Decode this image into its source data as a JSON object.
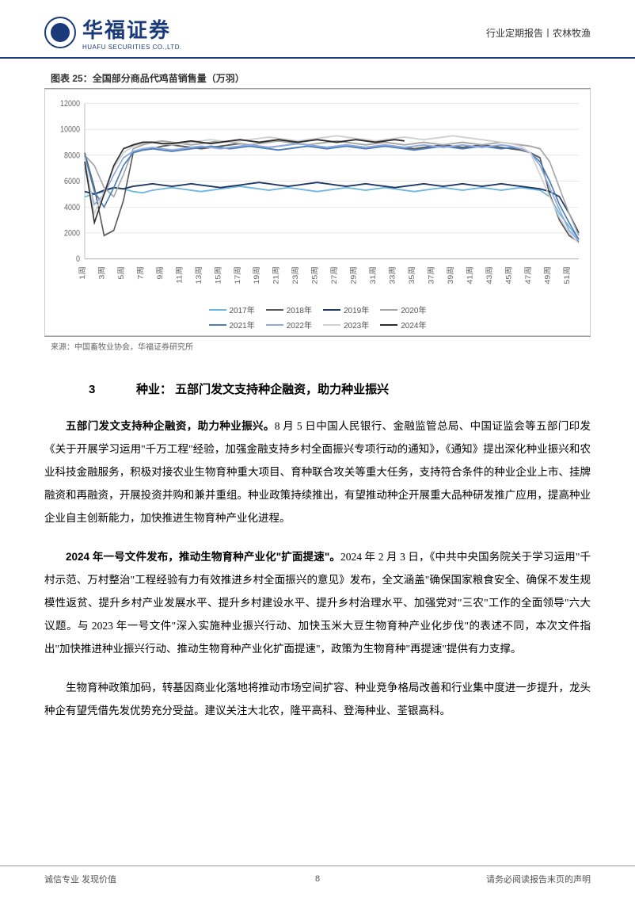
{
  "header": {
    "logo_title": "华福证券",
    "logo_sub": "HUAFU SECURITIES CO.,LTD.",
    "right_text": "行业定期报告丨农林牧渔"
  },
  "chart": {
    "title_prefix": "图表 25：",
    "title": "全国部分商品代鸡苗销售量（万羽）",
    "source": "来源：中国畜牧业协会，华福证券研究所",
    "type": "line",
    "ylim": [
      0,
      12000
    ],
    "ytick_step": 2000,
    "yticks": [
      "0",
      "2000",
      "4000",
      "6000",
      "8000",
      "10000",
      "12000"
    ],
    "xticks": [
      "1周",
      "3周",
      "5周",
      "7周",
      "9周",
      "11周",
      "13周",
      "15周",
      "17周",
      "19周",
      "21周",
      "23周",
      "25周",
      "27周",
      "29周",
      "31周",
      "33周",
      "35周",
      "37周",
      "39周",
      "41周",
      "43周",
      "45周",
      "47周",
      "49周",
      "51周"
    ],
    "background_color": "#ffffff",
    "grid_color": "#d9d9d9",
    "axis_color": "#bfbfbf",
    "tick_font_size": 9,
    "legend": [
      {
        "label": "2017年",
        "color": "#6fb7e0"
      },
      {
        "label": "2018年",
        "color": "#595959"
      },
      {
        "label": "2019年",
        "color": "#1f3864"
      },
      {
        "label": "2020年",
        "color": "#a6a6a6"
      },
      {
        "label": "2021年",
        "color": "#4a7ebb"
      },
      {
        "label": "2022年",
        "color": "#8faadc"
      },
      {
        "label": "2023年",
        "color": "#d0d0d0"
      },
      {
        "label": "2024年",
        "color": "#2d2d2d"
      }
    ],
    "series": {
      "2017": [
        4800,
        5000,
        5200,
        5500,
        5400,
        5200,
        5100,
        5300,
        5400,
        5500,
        5400,
        5300,
        5200,
        5300,
        5400,
        5500,
        5600,
        5500,
        5400,
        5300,
        5400,
        5500,
        5400,
        5300,
        5200,
        5300,
        5400,
        5500,
        5400,
        5300,
        5400,
        5500,
        5400,
        5300,
        5200,
        5300,
        5400,
        5500,
        5400,
        5300,
        5400,
        5500,
        5400,
        5300,
        5400,
        5500,
        5400,
        5300,
        4800,
        3500,
        2500,
        1500
      ],
      "2018": [
        8200,
        5500,
        1800,
        2200,
        4500,
        8200,
        8400,
        8500,
        8700,
        8800,
        8700,
        8600,
        8500,
        8600,
        8700,
        8800,
        8900,
        8800,
        8700,
        8600,
        8700,
        8800,
        8900,
        8800,
        8700,
        8600,
        8700,
        8800,
        8700,
        8600,
        8700,
        8800,
        8700,
        8600,
        8500,
        8600,
        8700,
        8800,
        8700,
        8600,
        8700,
        8800,
        8700,
        8600,
        8500,
        8400,
        8200,
        7800,
        5000,
        3000,
        1800,
        1300
      ],
      "2019": [
        5200,
        5000,
        5300,
        5500,
        5400,
        5600,
        5700,
        5800,
        5700,
        5600,
        5700,
        5800,
        5700,
        5600,
        5500,
        5600,
        5700,
        5800,
        5900,
        5800,
        5700,
        5600,
        5700,
        5800,
        5900,
        5800,
        5700,
        5600,
        5700,
        5800,
        5700,
        5600,
        5500,
        5600,
        5700,
        5800,
        5700,
        5600,
        5700,
        5800,
        5700,
        5600,
        5700,
        5800,
        5700,
        5600,
        5500,
        5400,
        5200,
        4800,
        3500,
        2000
      ],
      "2020": [
        8000,
        7200,
        5500,
        4800,
        6500,
        8500,
        8800,
        9000,
        9100,
        9000,
        8900,
        8800,
        8900,
        9000,
        9100,
        9000,
        8900,
        8800,
        8900,
        9000,
        9100,
        9000,
        8900,
        8800,
        8900,
        9000,
        9100,
        9000,
        8900,
        8800,
        8900,
        9000,
        8900,
        8800,
        8900,
        9000,
        8900,
        8800,
        8900,
        9000,
        8900,
        8800,
        8900,
        9000,
        8900,
        8800,
        8700,
        8500,
        7500,
        5500,
        3500,
        1800
      ],
      "2021": [
        8000,
        5200,
        4000,
        5500,
        7200,
        8200,
        8400,
        8500,
        8400,
        8300,
        8400,
        8500,
        8600,
        8700,
        8600,
        8500,
        8600,
        8700,
        8600,
        8500,
        8400,
        8500,
        8600,
        8700,
        8600,
        8500,
        8600,
        8700,
        8600,
        8500,
        8600,
        8700,
        8600,
        8500,
        8400,
        8500,
        8600,
        8700,
        8600,
        8500,
        8600,
        8700,
        8600,
        8500,
        8600,
        8500,
        8200,
        7500,
        6000,
        4200,
        2800,
        1500
      ],
      "2022": [
        7000,
        4200,
        5000,
        6500,
        7800,
        8300,
        8500,
        8600,
        8500,
        8400,
        8500,
        8600,
        8700,
        8600,
        8500,
        8600,
        8700,
        8800,
        8700,
        8600,
        8700,
        8800,
        8900,
        8800,
        8700,
        8600,
        8700,
        8800,
        8700,
        8600,
        8700,
        8800,
        8700,
        8600,
        8700,
        8800,
        8700,
        8600,
        8700,
        8800,
        8700,
        8600,
        8700,
        8800,
        8700,
        8500,
        8200,
        7200,
        5500,
        3800,
        2200,
        1400
      ],
      "2023": [
        7800,
        3500,
        5200,
        7000,
        8200,
        8700,
        8900,
        9000,
        8900,
        8800,
        8900,
        9000,
        9100,
        9200,
        9100,
        9000,
        9100,
        9200,
        9300,
        9400,
        9300,
        9200,
        9100,
        9200,
        9300,
        9400,
        9500,
        9400,
        9300,
        9200,
        9100,
        9200,
        9300,
        9400,
        9300,
        9200,
        9300,
        9400,
        9500,
        9400,
        9300,
        9200,
        9100,
        9000,
        8900,
        8700,
        8200,
        6500,
        4800,
        3200,
        2000,
        1200
      ],
      "2024": [
        7500,
        2800,
        5000,
        7200,
        8500,
        8800,
        9000,
        9000,
        8900,
        8900,
        9000,
        9100,
        9000,
        8900,
        9000,
        9100,
        9200,
        9100,
        9000,
        9100,
        9200,
        9100,
        9000,
        9100,
        9200,
        9100,
        9000,
        9100,
        9200,
        9100,
        9000,
        9100,
        9200,
        9100
      ]
    }
  },
  "section": {
    "number": "3",
    "heading": "种业：  五部门发文支持种企融资，助力种业振兴"
  },
  "paragraphs": {
    "p1_bold": "五部门发文支持种企融资，助力种业振兴。",
    "p1": "8 月 5 日中国人民银行、金融监管总局、中国证监会等五部门印发《关于开展学习运用\"千万工程\"经验，加强金融支持乡村全面振兴专项行动的通知》，《通知》提出深化种业振兴和农业科技金融服务，积极对接农业生物育种重大项目、育种联合攻关等重大任务，支持符合条件的种业企业上市、挂牌融资和再融资，开展投资并购和兼并重组。种业政策持续推出，有望推动种企开展重大品种研发推广应用，提高种业企业自主创新能力，加快推进生物育种产业化进程。",
    "p2_bold": "2024 年一号文件发布，推动生物育种产业化\"扩面提速\"。",
    "p2": "2024 年 2 月 3 日，《中共中央国务院关于学习运用\"千村示范、万村整治\"工程经验有力有效推进乡村全面振兴的意见》发布，全文涵盖\"确保国家粮食安全、确保不发生规模性返贫、提升乡村产业发展水平、提升乡村建设水平、提升乡村治理水平、加强党对\"三农\"工作的全面领导\"六大议题。与 2023 年一号文件\"深入实施种业振兴行动、加快玉米大豆生物育种产业化步伐\"的表述不同，本次文件指出\"加快推进种业振兴行动、推动生物育种产业化扩面提速\"，政策为生物育种\"再提速\"提供有力支撑。",
    "p3": "生物育种政策加码，转基因商业化落地将推动市场空间扩容、种业竞争格局改善和行业集中度进一步提升，龙头种企有望凭借先发优势充分受益。建议关注大北农，隆平高科、登海种业、荃银高科。"
  },
  "footer": {
    "left": "诚信专业  发现价值",
    "page": "8",
    "right": "请务必阅读报告末页的声明"
  }
}
